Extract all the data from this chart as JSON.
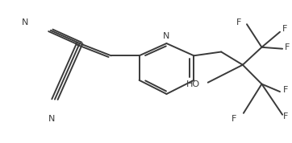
{
  "background_color": "#ffffff",
  "line_color": "#3a3a3a",
  "text_color": "#3a3a3a",
  "line_width": 1.4,
  "font_size": 8.0,
  "xlim": [
    0.0,
    1.0
  ],
  "ylim": [
    0.0,
    1.0
  ]
}
